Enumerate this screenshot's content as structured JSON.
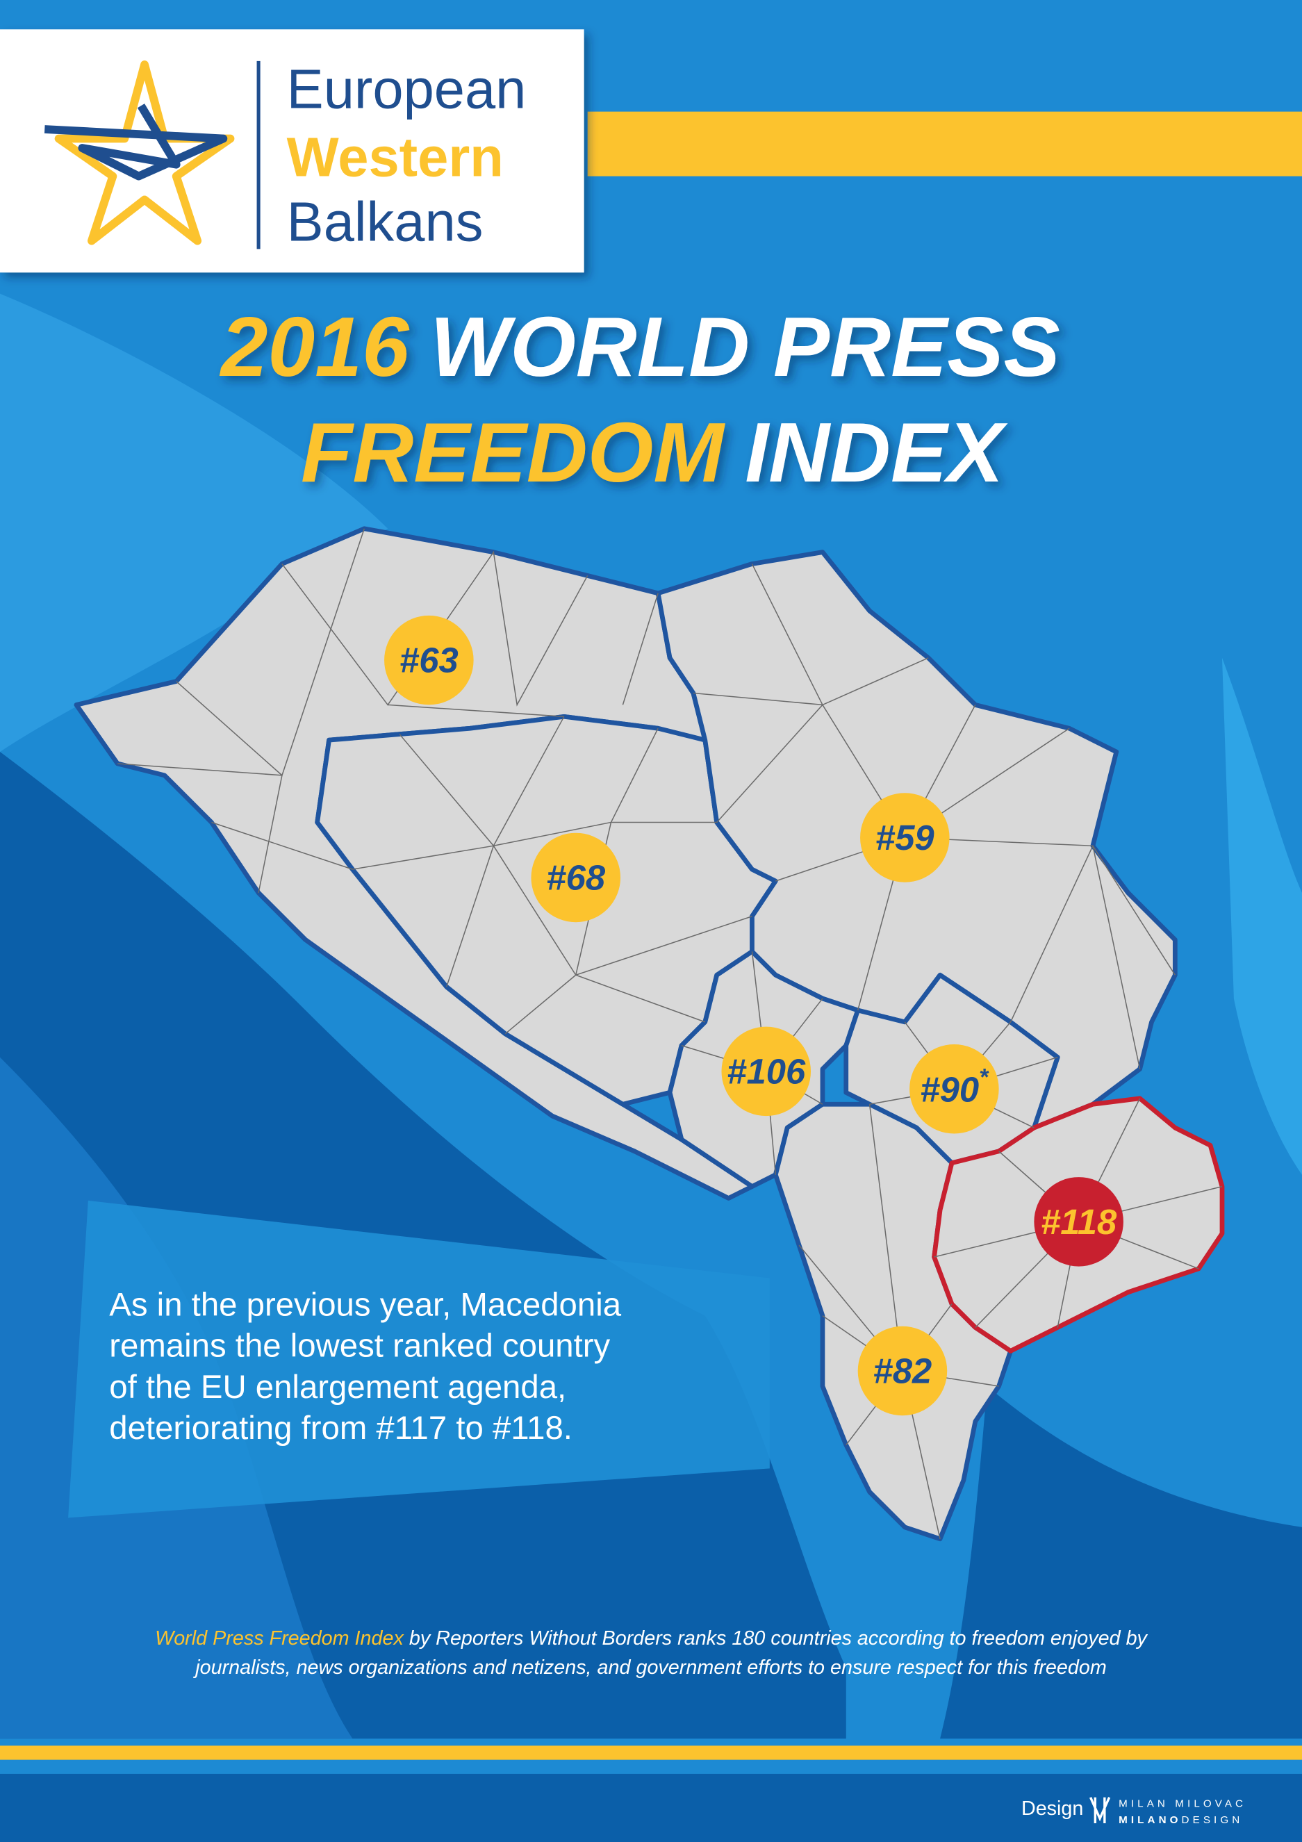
{
  "logo": {
    "line1": "European",
    "line2": "Western",
    "line3": "Balkans"
  },
  "title": {
    "year": "2016",
    "line1_rest": "WORLD PRESS",
    "line2_highlight": "FREEDOM",
    "line2_rest": "INDEX"
  },
  "markers": [
    {
      "label": "#63"
    },
    {
      "label": "#68"
    },
    {
      "label": "#59"
    },
    {
      "label": "#106"
    },
    {
      "label": "#90",
      "note": "*"
    },
    {
      "label": "#118"
    },
    {
      "label": "#82"
    }
  ],
  "note": {
    "lines": [
      "As in the previous year, Macedonia",
      "remains the lowest ranked country",
      "of the EU enlargement agenda,",
      "deteriorating from #117 to #118."
    ]
  },
  "footer": {
    "highlight": "World Press Freedom Index",
    "line1_rest": " by Reporters Without Borders ranks 180 countries according to freedom enjoyed by",
    "line2": "journalists, news organizations and netizens, and government efforts to ensure respect for this freedom"
  },
  "credit": {
    "design": "Design",
    "name": "MILAN MILOVAC",
    "brand_bold": "MILANO",
    "brand_rest": "DESIGN"
  }
}
